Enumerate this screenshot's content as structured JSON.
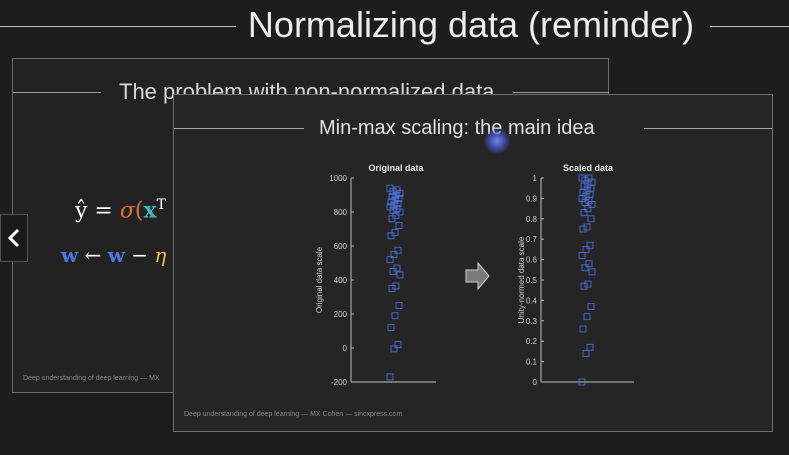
{
  "main_title": "Normalizing data (reminder)",
  "back_slide": {
    "title": "The problem with non-normalized data",
    "eq1_prefix": "ŷ = ",
    "eq1_sigma": "σ",
    "eq1_paren": "(",
    "eq1_x": "x",
    "eq1_sup": "T",
    "eq2_w1": "w",
    "eq2_arrow": " ← ",
    "eq2_w2": "w",
    "eq2_minus": " − ",
    "eq2_eta": "η",
    "footer": "Deep understanding of deep learning — MX"
  },
  "front_slide": {
    "title": "Min-max scaling: the main idea",
    "footer": "Deep understanding of deep learning — MX Cohen — sincxpress.com"
  },
  "colors": {
    "background": "#1d1d1d",
    "marker": "#4a6fd6",
    "sigma": "#e0703a",
    "x_vector": "#3fb8b8",
    "w_vector": "#4a78e0",
    "eta": "#e8c04a"
  },
  "icons": {
    "nav_back": "chevron-left-icon",
    "arrow": "right-arrow-icon"
  },
  "chart_data": [
    {
      "type": "scatter",
      "title": "Original data",
      "xlabel": "",
      "ylabel": "Original data scale",
      "ylim": [
        -200,
        1000
      ],
      "yticks": [
        -200,
        0,
        200,
        400,
        600,
        800,
        1000
      ],
      "grid": false,
      "values": [
        -170,
        -5,
        20,
        120,
        190,
        250,
        350,
        365,
        430,
        450,
        470,
        520,
        550,
        575,
        660,
        680,
        720,
        760,
        780,
        800,
        810,
        820,
        830,
        840,
        850,
        860,
        870,
        880,
        890,
        900,
        910,
        920,
        930,
        940
      ]
    },
    {
      "type": "scatter",
      "title": "Scaled data",
      "xlabel": "",
      "ylabel": "Unity-normed data scale",
      "ylim": [
        0,
        1
      ],
      "yticks": [
        0,
        0.1,
        0.2,
        0.3,
        0.4,
        0.5,
        0.6,
        0.7,
        0.8,
        0.9,
        1
      ],
      "ytick_labels": [
        "0",
        "0.1",
        "0.2",
        "0.3",
        "0.4",
        "0.5",
        "0.6",
        "0.7",
        "0.8",
        "0.9",
        "1"
      ],
      "grid": false,
      "values": [
        0.0,
        0.14,
        0.17,
        0.26,
        0.32,
        0.37,
        0.47,
        0.48,
        0.54,
        0.56,
        0.58,
        0.62,
        0.65,
        0.67,
        0.75,
        0.76,
        0.8,
        0.83,
        0.85,
        0.87,
        0.88,
        0.89,
        0.9,
        0.91,
        0.92,
        0.93,
        0.94,
        0.95,
        0.96,
        0.97,
        0.98,
        0.99,
        1.0,
        1.0
      ]
    }
  ]
}
